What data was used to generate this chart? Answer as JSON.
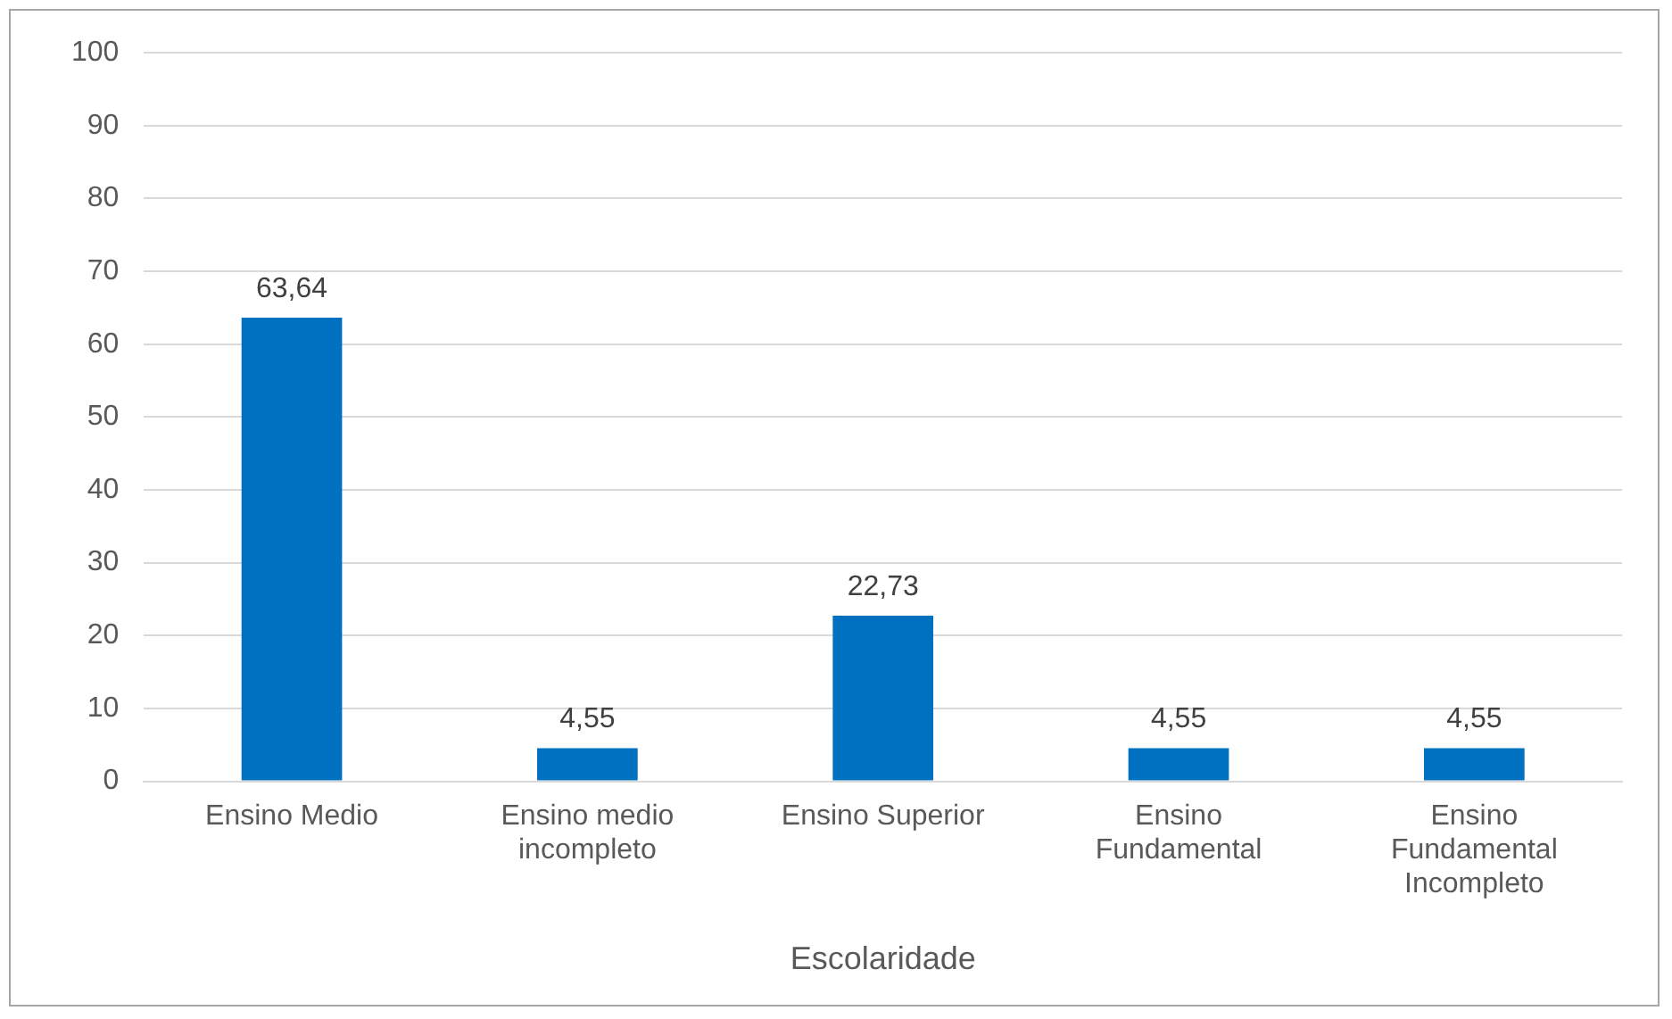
{
  "chart_data": {
    "type": "bar",
    "xlabel": "Escolaridade",
    "categories": [
      "Ensino Medio",
      "Ensino medio incompleto",
      "Ensino Superior",
      "Ensino Fundamental",
      "Ensino Fundamental Incompleto"
    ],
    "values": [
      63.64,
      4.55,
      22.73,
      4.55,
      4.55
    ],
    "value_labels": [
      "63,64",
      "4,55",
      "22,73",
      "4,55",
      "4,55"
    ],
    "color": "#0070c0",
    "ylim": [
      0,
      100
    ],
    "yticks": [
      0,
      10,
      20,
      30,
      40,
      50,
      60,
      70,
      80,
      90,
      100
    ],
    "grid": "y",
    "legend": false
  }
}
